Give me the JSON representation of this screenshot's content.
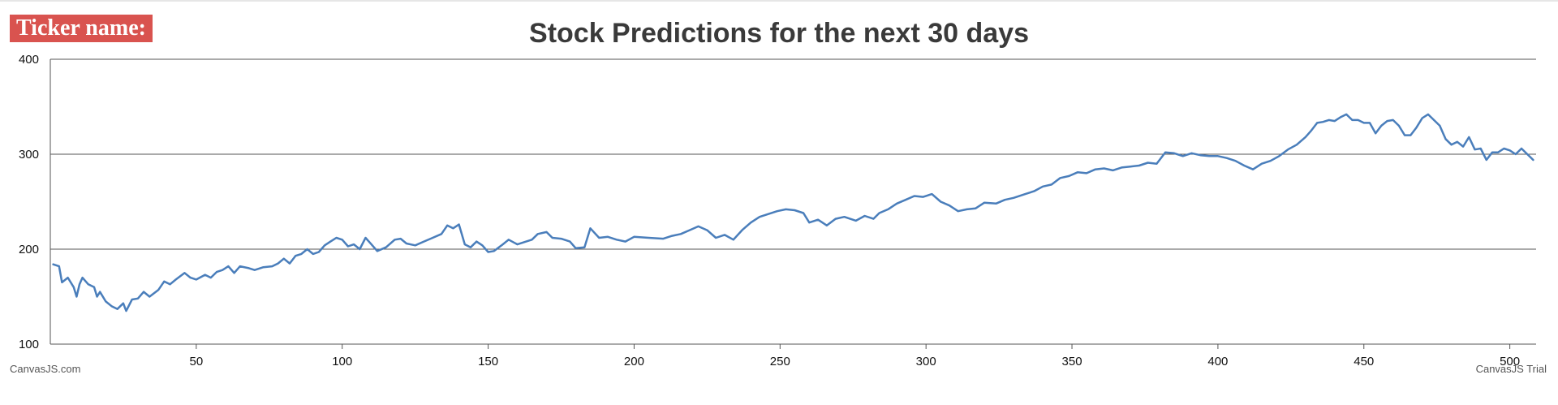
{
  "ticker": {
    "label": "Ticker name:",
    "value": ""
  },
  "chart_data": {
    "type": "line",
    "title": "Stock Predictions for the next 30 days",
    "xlabel": "",
    "ylabel": "",
    "xlim": [
      0,
      509
    ],
    "ylim": [
      100,
      400
    ],
    "x_ticks": [
      50,
      100,
      150,
      200,
      250,
      300,
      350,
      400,
      450,
      500
    ],
    "y_ticks": [
      100,
      200,
      300,
      400
    ],
    "grid": "horizontal",
    "legend": "none",
    "line_color": "#4a7ebb",
    "series": [
      {
        "name": "",
        "points": [
          [
            1,
            184
          ],
          [
            3,
            182
          ],
          [
            4,
            165
          ],
          [
            6,
            170
          ],
          [
            8,
            160
          ],
          [
            9,
            150
          ],
          [
            10,
            163
          ],
          [
            11,
            170
          ],
          [
            13,
            163
          ],
          [
            15,
            160
          ],
          [
            16,
            150
          ],
          [
            17,
            155
          ],
          [
            19,
            145
          ],
          [
            21,
            140
          ],
          [
            23,
            137
          ],
          [
            25,
            143
          ],
          [
            26,
            135
          ],
          [
            28,
            147
          ],
          [
            30,
            148
          ],
          [
            32,
            155
          ],
          [
            34,
            150
          ],
          [
            37,
            157
          ],
          [
            39,
            166
          ],
          [
            41,
            163
          ],
          [
            43,
            168
          ],
          [
            46,
            175
          ],
          [
            48,
            170
          ],
          [
            50,
            168
          ],
          [
            53,
            173
          ],
          [
            55,
            170
          ],
          [
            57,
            176
          ],
          [
            59,
            178
          ],
          [
            61,
            182
          ],
          [
            63,
            175
          ],
          [
            65,
            182
          ],
          [
            68,
            180
          ],
          [
            70,
            178
          ],
          [
            73,
            181
          ],
          [
            76,
            182
          ],
          [
            78,
            185
          ],
          [
            80,
            190
          ],
          [
            82,
            185
          ],
          [
            84,
            193
          ],
          [
            86,
            195
          ],
          [
            88,
            200
          ],
          [
            90,
            195
          ],
          [
            92,
            197
          ],
          [
            94,
            204
          ],
          [
            96,
            208
          ],
          [
            98,
            212
          ],
          [
            100,
            210
          ],
          [
            102,
            203
          ],
          [
            104,
            205
          ],
          [
            106,
            200
          ],
          [
            108,
            212
          ],
          [
            110,
            205
          ],
          [
            112,
            198
          ],
          [
            115,
            202
          ],
          [
            118,
            210
          ],
          [
            120,
            211
          ],
          [
            122,
            206
          ],
          [
            125,
            204
          ],
          [
            128,
            208
          ],
          [
            131,
            212
          ],
          [
            134,
            216
          ],
          [
            136,
            225
          ],
          [
            138,
            222
          ],
          [
            140,
            226
          ],
          [
            142,
            205
          ],
          [
            144,
            202
          ],
          [
            146,
            208
          ],
          [
            148,
            204
          ],
          [
            150,
            197
          ],
          [
            152,
            198
          ],
          [
            155,
            205
          ],
          [
            157,
            210
          ],
          [
            160,
            205
          ],
          [
            163,
            208
          ],
          [
            165,
            210
          ],
          [
            167,
            216
          ],
          [
            170,
            218
          ],
          [
            172,
            212
          ],
          [
            175,
            211
          ],
          [
            178,
            208
          ],
          [
            180,
            201
          ],
          [
            183,
            202
          ],
          [
            185,
            222
          ],
          [
            188,
            212
          ],
          [
            191,
            213
          ],
          [
            194,
            210
          ],
          [
            197,
            208
          ],
          [
            200,
            213
          ],
          [
            205,
            212
          ],
          [
            210,
            211
          ],
          [
            213,
            214
          ],
          [
            216,
            216
          ],
          [
            219,
            220
          ],
          [
            222,
            224
          ],
          [
            225,
            220
          ],
          [
            228,
            212
          ],
          [
            231,
            215
          ],
          [
            234,
            210
          ],
          [
            237,
            220
          ],
          [
            240,
            228
          ],
          [
            243,
            234
          ],
          [
            246,
            237
          ],
          [
            249,
            240
          ],
          [
            252,
            242
          ],
          [
            255,
            241
          ],
          [
            258,
            238
          ],
          [
            260,
            228
          ],
          [
            263,
            231
          ],
          [
            266,
            225
          ],
          [
            269,
            232
          ],
          [
            272,
            234
          ],
          [
            276,
            230
          ],
          [
            279,
            235
          ],
          [
            282,
            232
          ],
          [
            284,
            238
          ],
          [
            287,
            242
          ],
          [
            290,
            248
          ],
          [
            293,
            252
          ],
          [
            296,
            256
          ],
          [
            299,
            255
          ],
          [
            302,
            258
          ],
          [
            305,
            250
          ],
          [
            308,
            246
          ],
          [
            311,
            240
          ],
          [
            314,
            242
          ],
          [
            317,
            243
          ],
          [
            320,
            249
          ],
          [
            324,
            248
          ],
          [
            327,
            252
          ],
          [
            330,
            254
          ],
          [
            334,
            258
          ],
          [
            337,
            261
          ],
          [
            340,
            266
          ],
          [
            343,
            268
          ],
          [
            346,
            275
          ],
          [
            349,
            277
          ],
          [
            352,
            281
          ],
          [
            355,
            280
          ],
          [
            358,
            284
          ],
          [
            361,
            285
          ],
          [
            364,
            283
          ],
          [
            367,
            286
          ],
          [
            370,
            287
          ],
          [
            373,
            288
          ],
          [
            376,
            291
          ],
          [
            379,
            290
          ],
          [
            382,
            302
          ],
          [
            385,
            301
          ],
          [
            388,
            298
          ],
          [
            391,
            301
          ],
          [
            394,
            299
          ],
          [
            397,
            298
          ],
          [
            400,
            298
          ],
          [
            403,
            296
          ],
          [
            406,
            293
          ],
          [
            409,
            288
          ],
          [
            412,
            284
          ],
          [
            415,
            290
          ],
          [
            418,
            293
          ],
          [
            421,
            298
          ],
          [
            424,
            305
          ],
          [
            427,
            310
          ],
          [
            430,
            318
          ],
          [
            432,
            325
          ],
          [
            434,
            333
          ],
          [
            436,
            334
          ],
          [
            438,
            336
          ],
          [
            440,
            335
          ],
          [
            442,
            339
          ],
          [
            444,
            342
          ],
          [
            446,
            336
          ],
          [
            448,
            336
          ],
          [
            450,
            333
          ],
          [
            452,
            333
          ],
          [
            454,
            322
          ],
          [
            456,
            330
          ],
          [
            458,
            335
          ],
          [
            460,
            336
          ],
          [
            462,
            330
          ],
          [
            464,
            320
          ],
          [
            466,
            320
          ],
          [
            468,
            328
          ],
          [
            470,
            338
          ],
          [
            472,
            342
          ],
          [
            474,
            336
          ],
          [
            476,
            330
          ],
          [
            478,
            316
          ],
          [
            480,
            310
          ],
          [
            482,
            313
          ],
          [
            484,
            308
          ],
          [
            486,
            318
          ],
          [
            488,
            305
          ],
          [
            490,
            306
          ],
          [
            492,
            294
          ],
          [
            494,
            302
          ],
          [
            496,
            302
          ],
          [
            498,
            306
          ],
          [
            500,
            304
          ],
          [
            502,
            300
          ],
          [
            504,
            306
          ],
          [
            506,
            300
          ],
          [
            508,
            294
          ]
        ]
      }
    ]
  },
  "credits": {
    "left": "CanvasJS.com",
    "right": "CanvasJS Trial"
  }
}
